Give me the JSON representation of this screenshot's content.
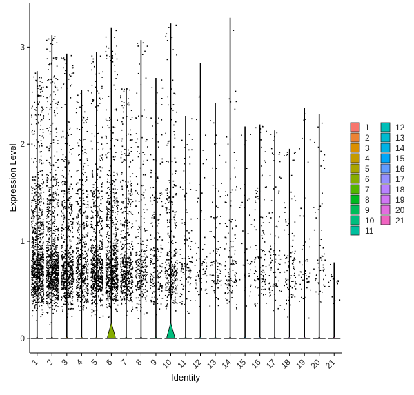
{
  "chart_data": {
    "type": "violin",
    "xlabel": "Identity",
    "ylabel": "Expression Level",
    "ylim": [
      -0.15,
      3.45
    ],
    "yticks": [
      "0",
      "1",
      "2",
      "3"
    ],
    "categories": [
      "1",
      "2",
      "3",
      "4",
      "5",
      "6",
      "7",
      "8",
      "9",
      "10",
      "11",
      "12",
      "13",
      "14",
      "15",
      "16",
      "17",
      "18",
      "19",
      "20",
      "21"
    ],
    "series": [
      {
        "name": "1",
        "color": "#F8766D",
        "max": 2.75,
        "density": 1.0,
        "zero_bulge": 0.0
      },
      {
        "name": "2",
        "color": "#EB8335",
        "max": 3.12,
        "density": 0.95,
        "zero_bulge": 0.0
      },
      {
        "name": "3",
        "color": "#DA8F00",
        "max": 2.93,
        "density": 0.65,
        "zero_bulge": 0.0
      },
      {
        "name": "4",
        "color": "#C49A00",
        "max": 2.56,
        "density": 0.55,
        "zero_bulge": 0.0
      },
      {
        "name": "5",
        "color": "#A9A400",
        "max": 2.95,
        "density": 0.7,
        "zero_bulge": 0.0
      },
      {
        "name": "6",
        "color": "#86AC00",
        "max": 3.2,
        "density": 0.8,
        "zero_bulge": 0.12
      },
      {
        "name": "7",
        "color": "#53B400",
        "max": 2.58,
        "density": 0.55,
        "zero_bulge": 0.0
      },
      {
        "name": "8",
        "color": "#00B81F",
        "max": 3.07,
        "density": 0.3,
        "zero_bulge": 0.0
      },
      {
        "name": "9",
        "color": "#00BC59",
        "max": 2.68,
        "density": 0.22,
        "zero_bulge": 0.0
      },
      {
        "name": "10",
        "color": "#00BD7E",
        "max": 3.24,
        "density": 0.35,
        "zero_bulge": 0.12
      },
      {
        "name": "11",
        "color": "#00BF9E",
        "max": 2.29,
        "density": 0.12,
        "zero_bulge": 0.0
      },
      {
        "name": "12",
        "color": "#00BFB8",
        "max": 2.83,
        "density": 0.08,
        "zero_bulge": 0.0
      },
      {
        "name": "13",
        "color": "#00BAD0",
        "max": 2.42,
        "density": 0.1,
        "zero_bulge": 0.0
      },
      {
        "name": "14",
        "color": "#00B2E5",
        "max": 3.3,
        "density": 0.14,
        "zero_bulge": 0.0
      },
      {
        "name": "15",
        "color": "#00A6F8",
        "max": 2.18,
        "density": 0.05,
        "zero_bulge": 0.0
      },
      {
        "name": "16",
        "color": "#619CFF",
        "max": 2.2,
        "density": 0.13,
        "zero_bulge": 0.0
      },
      {
        "name": "17",
        "color": "#9590FF",
        "max": 2.14,
        "density": 0.1,
        "zero_bulge": 0.0
      },
      {
        "name": "18",
        "color": "#B983FF",
        "max": 1.95,
        "density": 0.1,
        "zero_bulge": 0.0
      },
      {
        "name": "19",
        "color": "#D177F5",
        "max": 2.37,
        "density": 0.06,
        "zero_bulge": 0.0
      },
      {
        "name": "20",
        "color": "#E36EE0",
        "max": 2.31,
        "density": 0.06,
        "zero_bulge": 0.0
      },
      {
        "name": "21",
        "color": "#F064C1",
        "max": 0.78,
        "density": 0.02,
        "zero_bulge": 0.0
      }
    ],
    "legend": {
      "position": "right",
      "columns": 2
    }
  }
}
